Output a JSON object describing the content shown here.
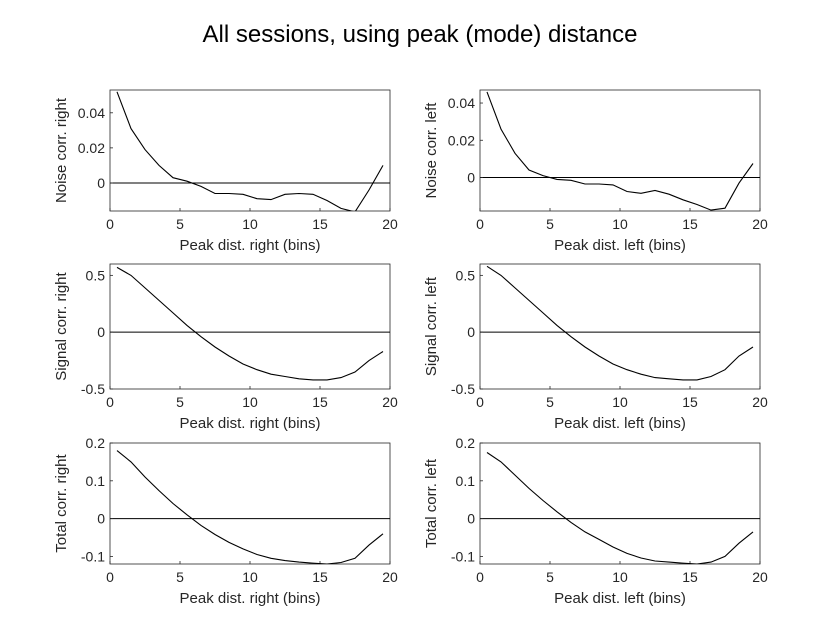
{
  "title": "All sessions, using peak (mode) distance",
  "chart_data": [
    {
      "type": "line",
      "xlabel": "Peak dist. right (bins)",
      "ylabel": "Noise corr. right",
      "xlim": [
        0,
        20
      ],
      "ylim": [
        -0.016,
        0.053
      ],
      "xticks": [
        "0",
        "5",
        "10",
        "15",
        "20"
      ],
      "yticks": [
        0,
        0.02,
        0.04
      ],
      "ytick_labels": [
        "0",
        "0.02",
        "0.04"
      ],
      "reference_line": 0,
      "x": [
        0.5,
        1.5,
        2.5,
        3.5,
        4.5,
        5.5,
        6.5,
        7.5,
        8.5,
        9.5,
        10.5,
        11.5,
        12.5,
        13.5,
        14.5,
        15.5,
        16.5,
        17.5,
        18.5,
        19.5
      ],
      "y": [
        0.052,
        0.031,
        0.019,
        0.01,
        0.003,
        0.001,
        -0.002,
        -0.006,
        -0.006,
        -0.0065,
        -0.009,
        -0.0095,
        -0.0065,
        -0.006,
        -0.0065,
        -0.01,
        -0.0145,
        -0.0165,
        -0.004,
        0.01
      ]
    },
    {
      "type": "line",
      "xlabel": "Peak dist. left (bins)",
      "ylabel": "Noise corr. left",
      "xlim": [
        0,
        20
      ],
      "ylim": [
        -0.018,
        0.047
      ],
      "xticks": [
        "0",
        "5",
        "10",
        "15",
        "20"
      ],
      "yticks": [
        0,
        0.02,
        0.04
      ],
      "ytick_labels": [
        "0",
        "0.02",
        "0.04"
      ],
      "reference_line": 0,
      "x": [
        0.5,
        1.5,
        2.5,
        3.5,
        4.5,
        5.5,
        6.5,
        7.5,
        8.5,
        9.5,
        10.5,
        11.5,
        12.5,
        13.5,
        14.5,
        15.5,
        16.5,
        17.5,
        18.5,
        19.5
      ],
      "y": [
        0.046,
        0.026,
        0.013,
        0.004,
        0.001,
        -0.001,
        -0.0015,
        -0.0035,
        -0.0035,
        -0.004,
        -0.0075,
        -0.0085,
        -0.007,
        -0.009,
        -0.012,
        -0.0145,
        -0.0175,
        -0.0165,
        -0.003,
        0.0075
      ]
    },
    {
      "type": "line",
      "xlabel": "Peak dist. right (bins)",
      "ylabel": "Signal corr. right",
      "xlim": [
        0,
        20
      ],
      "ylim": [
        -0.5,
        0.6
      ],
      "xticks": [
        "0",
        "5",
        "10",
        "15",
        "20"
      ],
      "yticks": [
        -0.5,
        0,
        0.5
      ],
      "ytick_labels": [
        "-0.5",
        "0",
        "0.5"
      ],
      "reference_line": 0,
      "x": [
        0.5,
        1.5,
        2.5,
        3.5,
        4.5,
        5.5,
        6.5,
        7.5,
        8.5,
        9.5,
        10.5,
        11.5,
        12.5,
        13.5,
        14.5,
        15.5,
        16.5,
        17.5,
        18.5,
        19.5
      ],
      "y": [
        0.57,
        0.5,
        0.39,
        0.28,
        0.17,
        0.06,
        -0.04,
        -0.13,
        -0.21,
        -0.28,
        -0.33,
        -0.37,
        -0.39,
        -0.41,
        -0.42,
        -0.42,
        -0.4,
        -0.35,
        -0.25,
        -0.17
      ]
    },
    {
      "type": "line",
      "xlabel": "Peak dist. left (bins)",
      "ylabel": "Signal corr. left",
      "xlim": [
        0,
        20
      ],
      "ylim": [
        -0.5,
        0.6
      ],
      "xticks": [
        "0",
        "5",
        "10",
        "15",
        "20"
      ],
      "yticks": [
        -0.5,
        0,
        0.5
      ],
      "ytick_labels": [
        "-0.5",
        "0",
        "0.5"
      ],
      "reference_line": 0,
      "x": [
        0.5,
        1.5,
        2.5,
        3.5,
        4.5,
        5.5,
        6.5,
        7.5,
        8.5,
        9.5,
        10.5,
        11.5,
        12.5,
        13.5,
        14.5,
        15.5,
        16.5,
        17.5,
        18.5,
        19.5
      ],
      "y": [
        0.58,
        0.5,
        0.39,
        0.28,
        0.17,
        0.06,
        -0.04,
        -0.13,
        -0.21,
        -0.28,
        -0.33,
        -0.37,
        -0.4,
        -0.41,
        -0.42,
        -0.42,
        -0.39,
        -0.33,
        -0.21,
        -0.13
      ]
    },
    {
      "type": "line",
      "xlabel": "Peak dist. right (bins)",
      "ylabel": "Total corr. right",
      "xlim": [
        0,
        20
      ],
      "ylim": [
        -0.12,
        0.2
      ],
      "xticks": [
        "0",
        "5",
        "10",
        "15",
        "20"
      ],
      "yticks": [
        -0.1,
        0,
        0.1,
        0.2
      ],
      "ytick_labels": [
        "-0.1",
        "0",
        "0.1",
        "0.2"
      ],
      "reference_line": 0,
      "x": [
        0.5,
        1.5,
        2.5,
        3.5,
        4.5,
        5.5,
        6.5,
        7.5,
        8.5,
        9.5,
        10.5,
        11.5,
        12.5,
        13.5,
        14.5,
        15.5,
        16.5,
        17.5,
        18.5,
        19.5
      ],
      "y": [
        0.18,
        0.15,
        0.11,
        0.074,
        0.04,
        0.01,
        -0.018,
        -0.042,
        -0.063,
        -0.08,
        -0.095,
        -0.105,
        -0.111,
        -0.115,
        -0.118,
        -0.12,
        -0.116,
        -0.105,
        -0.07,
        -0.04
      ]
    },
    {
      "type": "line",
      "xlabel": "Peak dist. left (bins)",
      "ylabel": "Total corr. left",
      "xlim": [
        0,
        20
      ],
      "ylim": [
        -0.12,
        0.2
      ],
      "xticks": [
        "0",
        "5",
        "10",
        "15",
        "20"
      ],
      "yticks": [
        -0.1,
        0,
        0.1,
        0.2
      ],
      "ytick_labels": [
        "-0.1",
        "0",
        "0.1",
        "0.2"
      ],
      "reference_line": 0,
      "x": [
        0.5,
        1.5,
        2.5,
        3.5,
        4.5,
        5.5,
        6.5,
        7.5,
        8.5,
        9.5,
        10.5,
        11.5,
        12.5,
        13.5,
        14.5,
        15.5,
        16.5,
        17.5,
        18.5,
        19.5
      ],
      "y": [
        0.175,
        0.15,
        0.115,
        0.08,
        0.048,
        0.018,
        -0.01,
        -0.035,
        -0.055,
        -0.075,
        -0.092,
        -0.104,
        -0.112,
        -0.115,
        -0.118,
        -0.12,
        -0.115,
        -0.1,
        -0.065,
        -0.035
      ]
    }
  ]
}
